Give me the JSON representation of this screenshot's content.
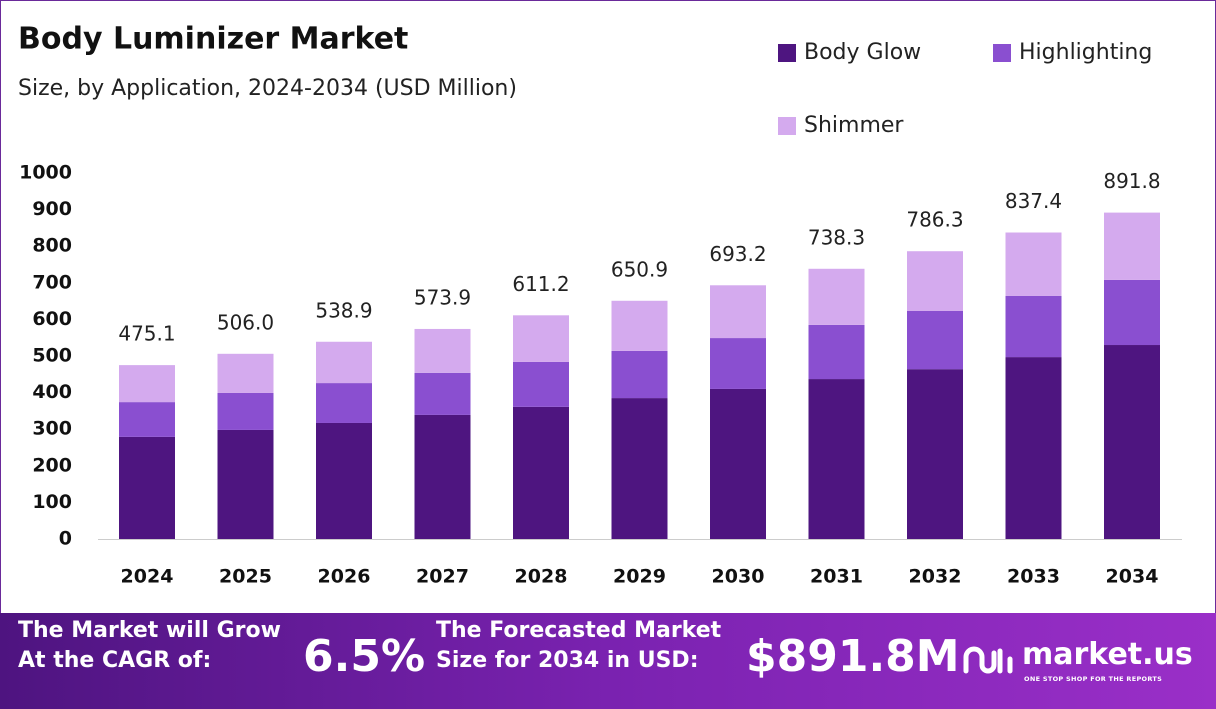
{
  "chart_data": {
    "type": "stacked_bar",
    "title": "Body Luminizer Market",
    "subtitle": "Size, by Application, 2024-2034 (USD Million)",
    "categories": [
      "2024",
      "2025",
      "2026",
      "2027",
      "2028",
      "2029",
      "2030",
      "2031",
      "2032",
      "2033",
      "2034"
    ],
    "series": [
      {
        "name": "Body Glow",
        "color": "#4e1580",
        "values": [
          279,
          298,
          317,
          339,
          361,
          385,
          410,
          437,
          464,
          497,
          530
        ]
      },
      {
        "name": "Highlighting",
        "color": "#8a4fd0",
        "values": [
          95,
          101,
          109,
          115,
          123,
          129,
          139,
          148,
          159,
          167,
          178
        ]
      },
      {
        "name": "Shimmer",
        "color": "#d4aaee",
        "values": [
          101.1,
          107.0,
          112.9,
          119.9,
          127.2,
          136.9,
          144.2,
          153.3,
          163.3,
          173.4,
          183.8
        ]
      }
    ],
    "totals": [
      475.1,
      506.0,
      538.9,
      573.9,
      611.2,
      650.9,
      693.2,
      738.3,
      786.3,
      837.4,
      891.8
    ],
    "total_labels": [
      "475.1",
      "506.0",
      "538.9",
      "573.9",
      "611.2",
      "650.9",
      "693.2",
      "738.3",
      "786.3",
      "837.4",
      "891.8"
    ],
    "ylim": [
      0,
      1000
    ],
    "yticks": [
      0,
      100,
      200,
      300,
      400,
      500,
      600,
      700,
      800,
      900,
      1000
    ],
    "grid": false
  },
  "footer": {
    "cagr_text": [
      "The Market will Grow",
      "At the CAGR of:"
    ],
    "cagr": "6.5%",
    "forecast_text": [
      "The Forecasted Market",
      "Size for 2034 in USD:"
    ],
    "forecast": "$891.8M",
    "brand": "market.us",
    "tagline": "ONE STOP SHOP FOR THE REPORTS"
  }
}
